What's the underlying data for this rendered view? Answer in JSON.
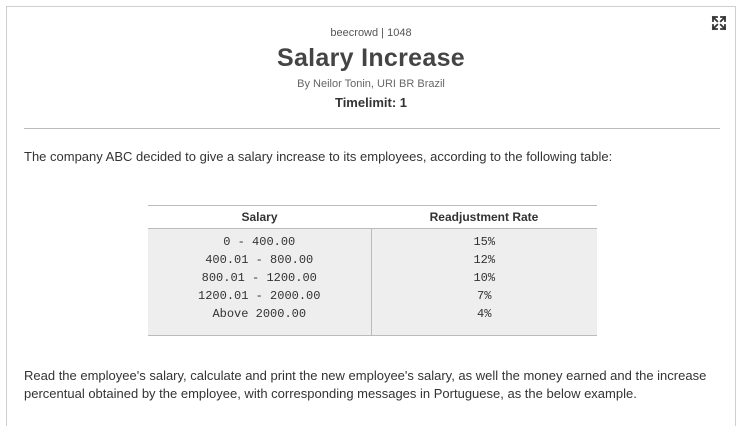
{
  "header": {
    "source": "beecrowd | 1048",
    "title": "Salary Increase",
    "author": "By Neilor Tonin, URI BR Brazil",
    "timelimit": "Timelimit: 1"
  },
  "toolbar": {
    "expand_icon": "expand-icon"
  },
  "content": {
    "intro": "The company ABC decided to give a salary increase to its employees, according to the following table:",
    "table": {
      "headers": [
        "Salary",
        "Readjustment Rate"
      ],
      "rows": [
        {
          "salary": "0 - 400.00",
          "rate": "15%"
        },
        {
          "salary": "400.01 - 800.00",
          "rate": "12%"
        },
        {
          "salary": "800.01 - 1200.00",
          "rate": "10%"
        },
        {
          "salary": "1200.01 - 2000.00",
          "rate": "7%"
        },
        {
          "salary": "Above 2000.00",
          "rate": "4%"
        }
      ]
    },
    "description": "Read the employee's salary, calculate and print the new employee's salary, as well the money earned and the increase percentual obtained by the employee, with corresponding messages in Portuguese, as the below example."
  }
}
